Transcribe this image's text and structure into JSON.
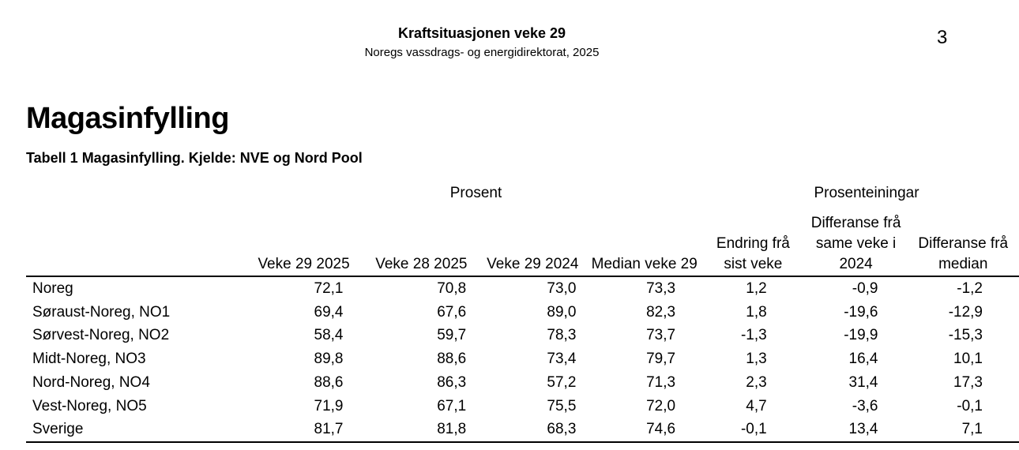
{
  "header": {
    "title": "Kraftsituasjonen veke 29",
    "subtitle": "Noregs vassdrags- og energidirektorat, 2025",
    "page_number": "3"
  },
  "section": {
    "title": "Magasinfylling",
    "caption": "Tabell 1 Magasinfylling. Kjelde: NVE og Nord Pool"
  },
  "table": {
    "group_headers": {
      "prosent": "Prosent",
      "prosenteiningar": "Prosenteiningar"
    },
    "columns": [
      "",
      "Veke 29 2025",
      "Veke 28 2025",
      "Veke 29 2024",
      "Median veke 29",
      "Endring frå sist veke",
      "Differanse frå same veke i 2024",
      "Differanse frå median"
    ],
    "rows": [
      [
        "Noreg",
        "72,1",
        "70,8",
        "73,0",
        "73,3",
        "1,2",
        "-0,9",
        "-1,2"
      ],
      [
        "Søraust-Noreg, NO1",
        "69,4",
        "67,6",
        "89,0",
        "82,3",
        "1,8",
        "-19,6",
        "-12,9"
      ],
      [
        "Sørvest-Noreg, NO2",
        "58,4",
        "59,7",
        "78,3",
        "73,7",
        "-1,3",
        "-19,9",
        "-15,3"
      ],
      [
        "Midt-Noreg, NO3",
        "89,8",
        "88,6",
        "73,4",
        "79,7",
        "1,3",
        "16,4",
        "10,1"
      ],
      [
        "Nord-Noreg, NO4",
        "88,6",
        "86,3",
        "57,2",
        "71,3",
        "2,3",
        "31,4",
        "17,3"
      ],
      [
        "Vest-Noreg, NO5",
        "71,9",
        "67,1",
        "75,5",
        "72,0",
        "4,7",
        "-3,6",
        "-0,1"
      ],
      [
        "Sverige",
        "81,7",
        "81,8",
        "68,3",
        "74,6",
        "-0,1",
        "13,4",
        "7,1"
      ]
    ]
  }
}
